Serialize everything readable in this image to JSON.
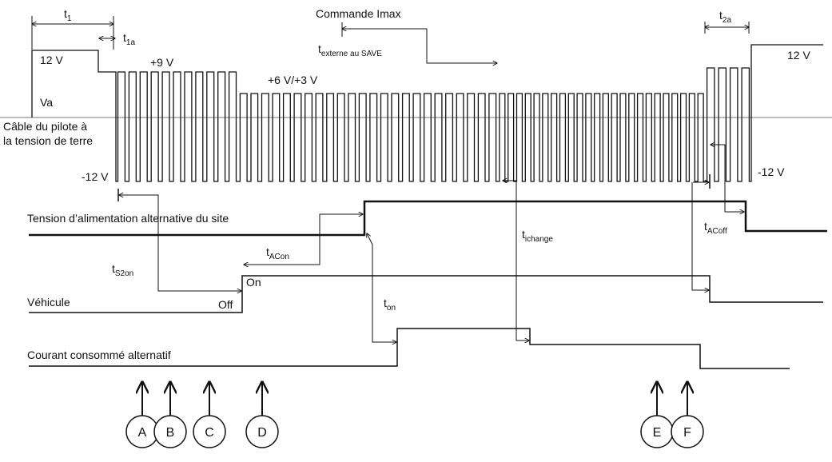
{
  "labels": {
    "t1": "t",
    "t1_sub": "1",
    "t1a": "t",
    "t1a_sub": "1a",
    "v12_left": "12 V",
    "v9": "+9 V",
    "v63": "+6 V/+3 V",
    "va": "Va",
    "vm12_left": "-12 V",
    "vm12_right": "-12 V",
    "v12_right": "12 V",
    "cmd_imax": "Commande Imax",
    "t_externe": "t",
    "t_externe_sub": "externe au SAVE",
    "t2a": "t",
    "t2a_sub": "2a",
    "cable_line1": "Câble du pilote à",
    "cable_line2": "la tension de terre",
    "tension_site": "Tension d’alimentation alternative du site",
    "vehicule": "Véhicule",
    "courant": "Courant consommé alternatif",
    "ts2on": "t",
    "ts2on_sub": "S2on",
    "tacon": "t",
    "tacon_sub": "ACon",
    "on": "On",
    "off": "Off",
    "ton": "t",
    "ton_sub": "on",
    "tichange": "t",
    "tichange_sub": "ichange",
    "tacoff": "t",
    "tacoff_sub": "ACoff"
  },
  "markers": [
    "A",
    "B",
    "C",
    "D",
    "E",
    "F"
  ],
  "colors": {
    "line": "#111111",
    "axis": "#777777",
    "background": "#ffffff"
  }
}
